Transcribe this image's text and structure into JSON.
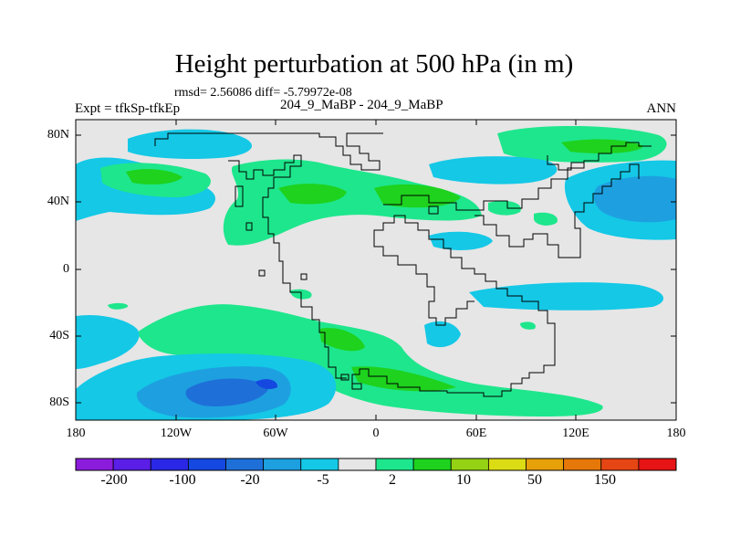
{
  "plot": {
    "title": "Height perturbation at 500 hPa (in m)",
    "stats": "rmsd= 2.56086 diff= -5.79972e-08",
    "experiment": "Expt = tfkSp-tfkEp",
    "case": "204_9_MaBP - 204_9_MaBP",
    "season": "ANN"
  },
  "axes": {
    "y_ticks": [
      "80N",
      "40N",
      "0",
      "40S",
      "80S"
    ],
    "x_ticks": [
      "180",
      "120W",
      "60W",
      "0",
      "60E",
      "120E",
      "180"
    ]
  },
  "colorbar": {
    "labels": [
      "-200",
      "-100",
      "-20",
      "-5",
      "2",
      "10",
      "50",
      "150"
    ],
    "colors": [
      "#8c1cdc",
      "#5a1ee6",
      "#2a28e6",
      "#1448e0",
      "#1e70d8",
      "#1ea0e0",
      "#14c8e6",
      "#e6e6e6",
      "#1ee68c",
      "#1ed21e",
      "#96d214",
      "#dcdc14",
      "#e6a00a",
      "#e6780a",
      "#e64614",
      "#e61414"
    ]
  }
}
